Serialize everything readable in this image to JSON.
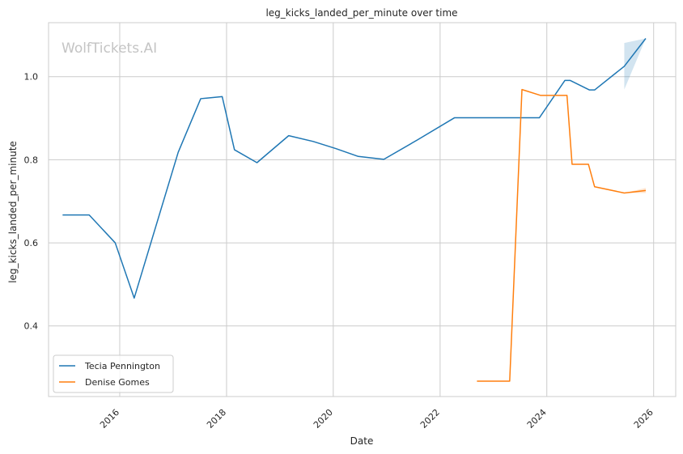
{
  "chart_data": {
    "type": "line",
    "title": "leg_kicks_landed_per_minute over time",
    "xlabel": "Date",
    "ylabel": "leg_kicks_landed_per_minute",
    "watermark": "WolfTickets.AI",
    "xlim": [
      "2014-09-01",
      "2026-06-01"
    ],
    "ylim": [
      0.23,
      1.13
    ],
    "x_ticks": [
      "2016",
      "2018",
      "2020",
      "2022",
      "2024",
      "2026"
    ],
    "y_ticks": [
      "0.4",
      "0.6",
      "0.8",
      "1.0"
    ],
    "grid": true,
    "legend_position": "lower-left",
    "series": [
      {
        "name": "Tecia Pennington",
        "color": "#1f77b4",
        "points": [
          [
            "2014-12-06",
            0.667
          ],
          [
            "2015-06-06",
            0.667
          ],
          [
            "2015-12-01",
            0.6
          ],
          [
            "2016-04-09",
            0.467
          ],
          [
            "2017-02-04",
            0.818
          ],
          [
            "2017-07-08",
            0.947
          ],
          [
            "2017-12-02",
            0.952
          ],
          [
            "2018-02-24",
            0.824
          ],
          [
            "2018-07-28",
            0.793
          ],
          [
            "2019-03-02",
            0.858
          ],
          [
            "2019-08-17",
            0.844
          ],
          [
            "2020-01-18",
            0.827
          ],
          [
            "2020-06-20",
            0.808
          ],
          [
            "2020-12-12",
            0.801
          ],
          [
            "2021-07-31",
            0.848
          ],
          [
            "2022-04-09",
            0.901
          ],
          [
            "2023-01-14",
            0.901
          ],
          [
            "2023-11-11",
            0.901
          ],
          [
            "2024-05-04",
            0.991
          ],
          [
            "2024-06-08",
            0.991
          ],
          [
            "2024-10-19",
            0.968
          ],
          [
            "2024-11-23",
            0.968
          ],
          [
            "2025-06-14",
            1.025
          ],
          [
            "2025-11-08",
            1.092
          ]
        ],
        "band": [
          [
            "2025-06-14",
            0.969,
            1.081
          ],
          [
            "2025-11-08",
            1.092,
            1.092
          ]
        ]
      },
      {
        "name": "Denise Gomes",
        "color": "#ff7f0e",
        "points": [
          [
            "2022-09-10",
            0.267
          ],
          [
            "2023-04-22",
            0.267
          ],
          [
            "2023-07-15",
            0.969
          ],
          [
            "2023-11-18",
            0.955
          ],
          [
            "2024-05-18",
            0.955
          ],
          [
            "2024-06-22",
            0.789
          ],
          [
            "2024-10-12",
            0.789
          ],
          [
            "2024-11-23",
            0.735
          ],
          [
            "2025-06-14",
            0.72
          ],
          [
            "2025-11-08",
            0.726
          ]
        ],
        "band": [
          [
            "2025-06-14",
            0.72,
            0.72
          ],
          [
            "2025-11-08",
            0.72,
            0.732
          ]
        ]
      }
    ]
  }
}
